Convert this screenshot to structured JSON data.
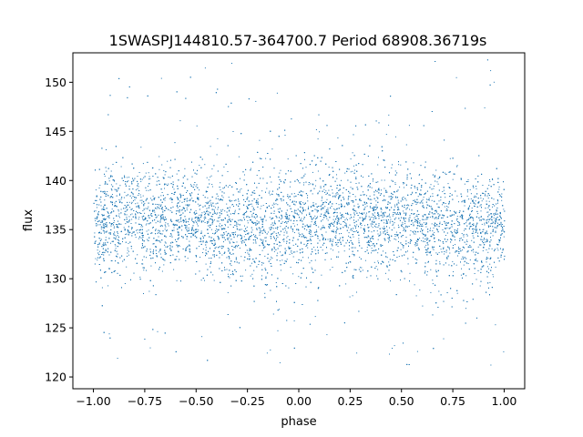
{
  "chart_data": {
    "type": "scatter",
    "title": "1SWASPJ144810.57-364700.7 Period 68908.36719s",
    "xlabel": "phase",
    "ylabel": "flux",
    "xlim": [
      -1.1,
      1.1
    ],
    "ylim": [
      118.8,
      153.0
    ],
    "x_ticks": [
      -1.0,
      -0.75,
      -0.5,
      -0.25,
      0.0,
      0.25,
      0.5,
      0.75,
      1.0
    ],
    "x_tick_labels": [
      "−1.00",
      "−0.75",
      "−0.50",
      "−0.25",
      "0.00",
      "0.25",
      "0.50",
      "0.75",
      "1.00"
    ],
    "y_ticks": [
      120,
      125,
      130,
      135,
      140,
      145,
      150
    ],
    "y_tick_labels": [
      "120",
      "125",
      "130",
      "135",
      "140",
      "145",
      "150"
    ],
    "grid": false,
    "point_color": "#1f77b4",
    "series": [
      {
        "phase_range": [
          -1.0,
          1.0
        ],
        "flux_core_range": [
          130,
          141
        ],
        "flux_center": 135.8,
        "flux_spread_min": 121,
        "flux_spread_max": 152.5
      }
    ]
  }
}
